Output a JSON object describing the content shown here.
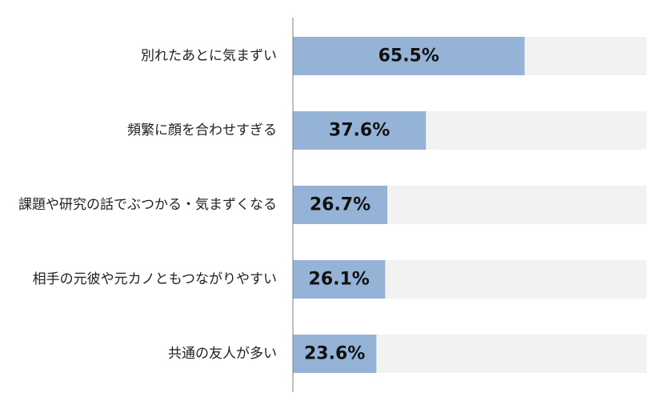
{
  "chart_data": {
    "type": "bar",
    "orientation": "horizontal",
    "categories": [
      "別れたあとに気まずい",
      "頻繁に顔を合わせすぎる",
      "課題や研究の話でぶつかる・気まずくなる",
      "相手の元彼や元カノともつながりやすい",
      "共通の友人が多い"
    ],
    "values": [
      65.5,
      37.6,
      26.7,
      26.1,
      23.6
    ],
    "value_labels": [
      "65.5%",
      "37.6%",
      "26.7%",
      "26.1%",
      "23.6%"
    ],
    "unit": "%",
    "xlim": [
      0,
      100
    ],
    "grid": false,
    "legend": "none",
    "colors": {
      "bar": "#95b3d7",
      "track": "#f2f2f2",
      "axis": "#7f7f7f"
    }
  }
}
